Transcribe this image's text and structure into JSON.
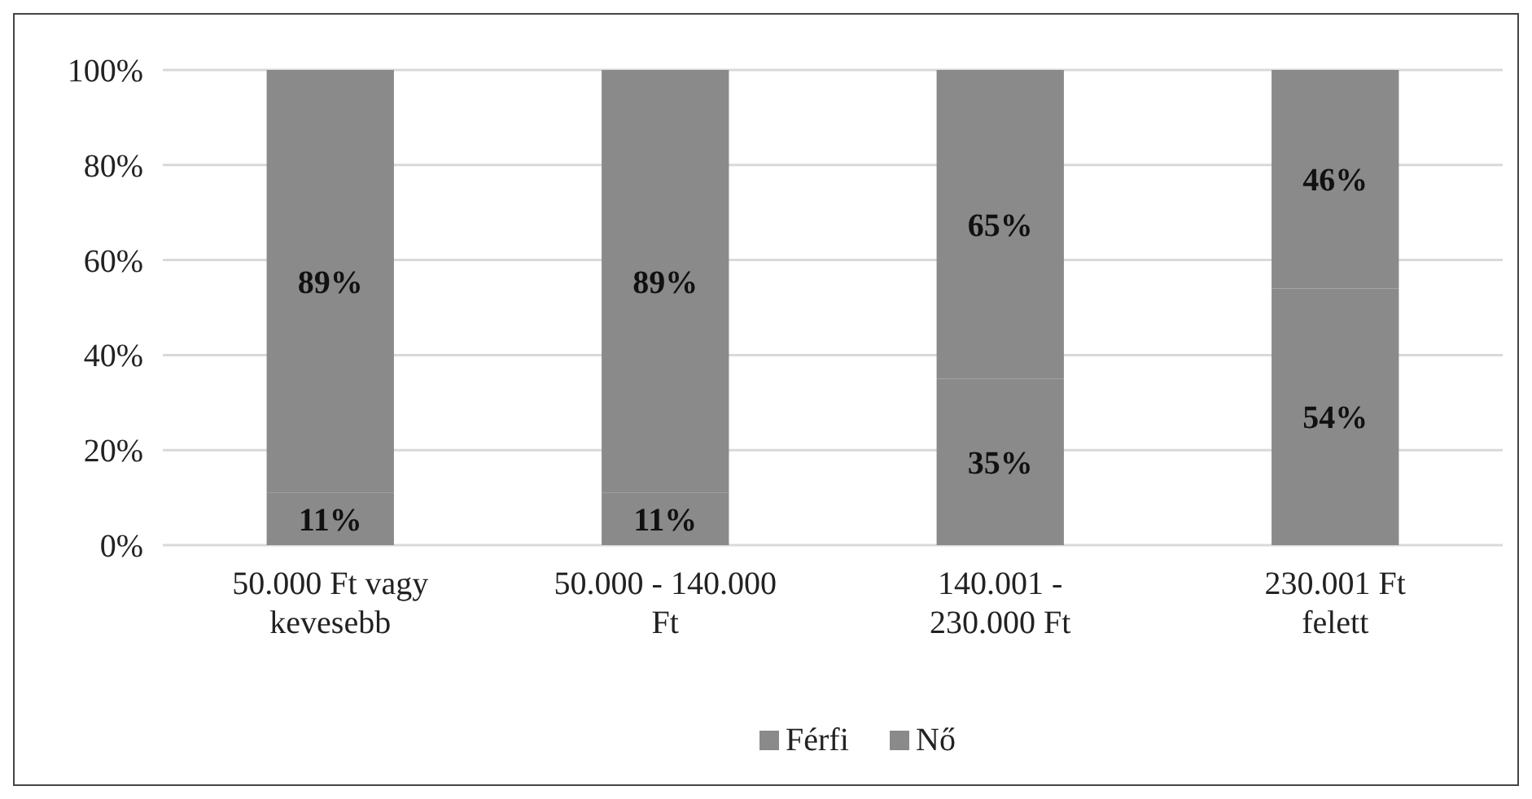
{
  "chart_data": {
    "type": "bar",
    "stacked": true,
    "categories": [
      "50.000 Ft vagy kevesebb",
      "50.000 - 140.000 Ft",
      "140.001 - 230.000 Ft",
      "230.001 Ft felett"
    ],
    "series": [
      {
        "name": "Férfi",
        "color": "#8a8a8a",
        "values": [
          11,
          11,
          35,
          54
        ],
        "value_labels": [
          "11%",
          "11%",
          "35%",
          "54%"
        ]
      },
      {
        "name": "Nő",
        "color": "#8a8a8a",
        "values": [
          89,
          89,
          65,
          46
        ],
        "value_labels": [
          "89%",
          "89%",
          "65%",
          "46%"
        ]
      }
    ],
    "ylim": [
      0,
      100
    ],
    "yticks": [
      {
        "value": 0,
        "label": "0%"
      },
      {
        "value": 20,
        "label": "20%"
      },
      {
        "value": 40,
        "label": "40%"
      },
      {
        "value": 60,
        "label": "60%"
      },
      {
        "value": 80,
        "label": "80%"
      },
      {
        "value": 100,
        "label": "100%"
      }
    ],
    "grid": "y",
    "legend": "bottom"
  }
}
